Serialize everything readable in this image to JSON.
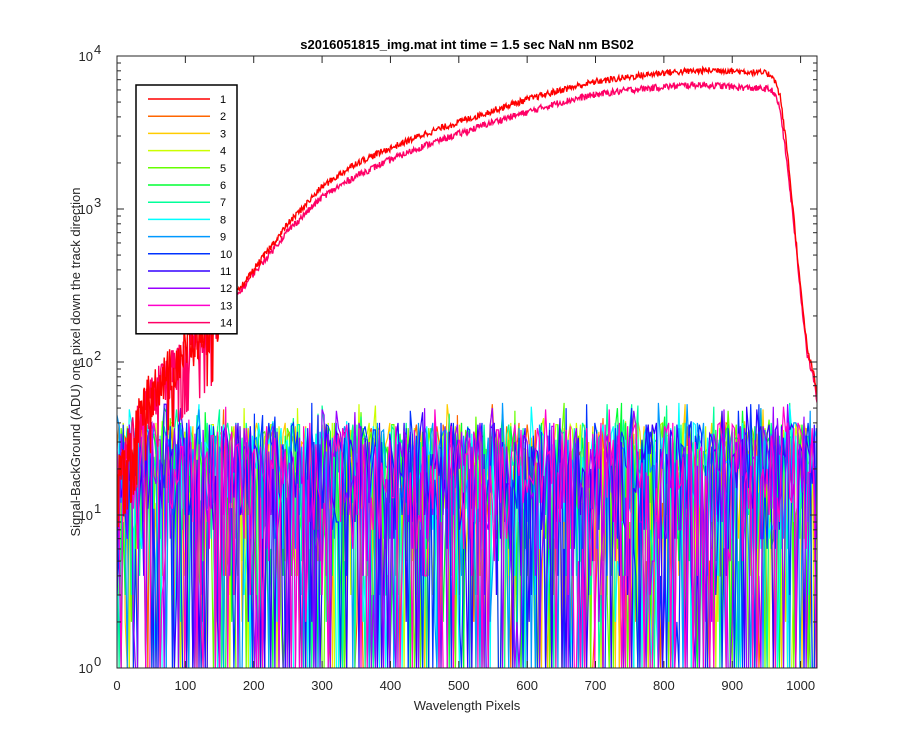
{
  "chart_data": {
    "type": "line",
    "title": "s2016051815_img.mat int time = 1.5 sec  NaN nm BS02",
    "xlabel": "Wavelength Pixels",
    "ylabel": "Signal-BackGround (ADU) one pixel down the track direction",
    "xlim": [
      0,
      1024
    ],
    "ylim": [
      1,
      10000
    ],
    "yscale": "log",
    "grid": false,
    "legend_position": "top-left",
    "xticks": [
      0,
      100,
      200,
      300,
      400,
      500,
      600,
      700,
      800,
      900,
      1000
    ],
    "yticks": [
      {
        "value": 1,
        "base": "10",
        "exp": "0"
      },
      {
        "value": 10,
        "base": "10",
        "exp": "1"
      },
      {
        "value": 100,
        "base": "10",
        "exp": "2"
      },
      {
        "value": 1000,
        "base": "10",
        "exp": "3"
      },
      {
        "value": 10000,
        "base": "10",
        "exp": "4"
      }
    ],
    "signal_series_x": [
      0,
      20,
      40,
      60,
      80,
      100,
      130,
      160,
      200,
      250,
      300,
      350,
      400,
      450,
      500,
      550,
      600,
      650,
      700,
      750,
      800,
      850,
      880,
      920,
      950,
      960,
      970,
      980,
      990,
      1000,
      1010,
      1020,
      1024
    ],
    "series": [
      {
        "name": "1",
        "color": "#ff0000",
        "role": "signal",
        "values": [
          20,
          30,
          55,
          75,
          95,
          120,
          170,
          230,
          400,
          800,
          1400,
          2000,
          2500,
          3100,
          3700,
          4400,
          5200,
          6000,
          6800,
          7300,
          7800,
          8000,
          8100,
          7900,
          7700,
          7400,
          5500,
          2500,
          900,
          300,
          120,
          80,
          60
        ]
      },
      {
        "name": "2",
        "color": "#ff6600",
        "role": "noise"
      },
      {
        "name": "3",
        "color": "#ffcc00",
        "role": "noise"
      },
      {
        "name": "4",
        "color": "#ccff00",
        "role": "noise"
      },
      {
        "name": "5",
        "color": "#66ff00",
        "role": "noise"
      },
      {
        "name": "6",
        "color": "#00ff33",
        "role": "noise"
      },
      {
        "name": "7",
        "color": "#00ff99",
        "role": "noise"
      },
      {
        "name": "8",
        "color": "#00ffff",
        "role": "noise"
      },
      {
        "name": "9",
        "color": "#0099ff",
        "role": "noise"
      },
      {
        "name": "10",
        "color": "#0033ff",
        "role": "noise"
      },
      {
        "name": "11",
        "color": "#3300ff",
        "role": "noise"
      },
      {
        "name": "12",
        "color": "#9900ff",
        "role": "noise"
      },
      {
        "name": "13",
        "color": "#ff00cc",
        "role": "noise"
      },
      {
        "name": "14",
        "color": "#ff0066",
        "role": "signal",
        "values": [
          20,
          30,
          50,
          70,
          90,
          115,
          160,
          220,
          380,
          720,
          1200,
          1650,
          2100,
          2600,
          3100,
          3700,
          4300,
          5000,
          5600,
          6000,
          6300,
          6500,
          6400,
          6200,
          6100,
          5900,
          4500,
          2000,
          800,
          280,
          110,
          75,
          55
        ]
      }
    ],
    "noise_band": {
      "typical_max": 40,
      "peak_max": 55,
      "min": 1
    }
  }
}
